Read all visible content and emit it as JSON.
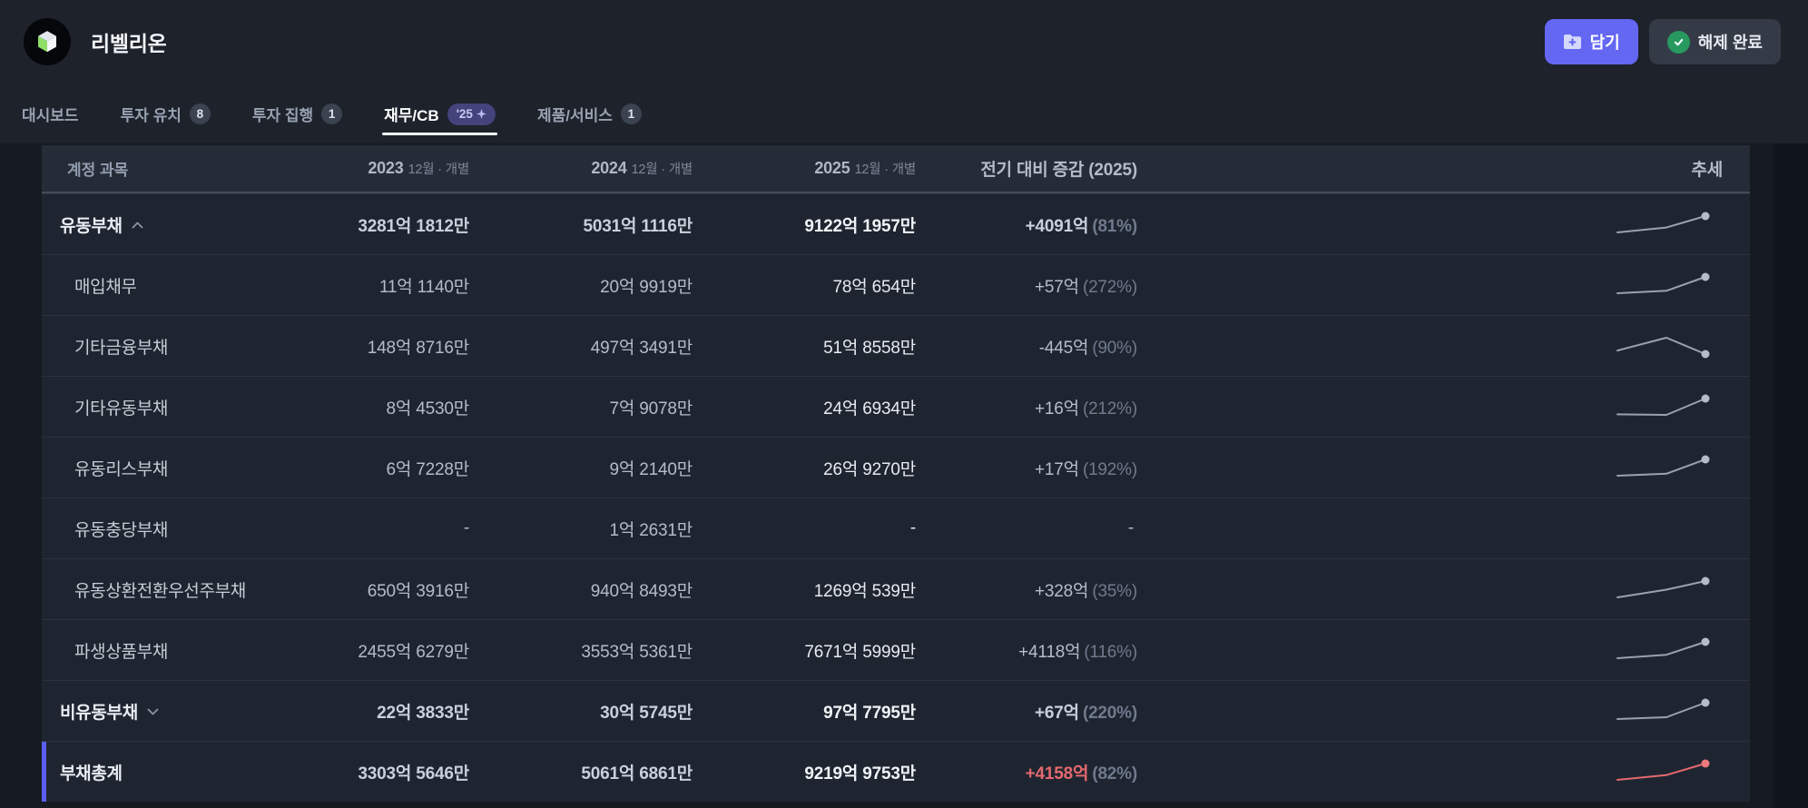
{
  "topbar": {
    "company_name": "리벨리온",
    "add_button": "담기",
    "done_button": "해제 완료"
  },
  "tabs": [
    {
      "label": "대시보드"
    },
    {
      "label": "투자 유치",
      "badge": "8"
    },
    {
      "label": "투자 집행",
      "badge": "1"
    },
    {
      "label": "재무/CB",
      "badge": "'25",
      "active": true
    },
    {
      "label": "제품/서비스",
      "badge": "1"
    }
  ],
  "table": {
    "header": {
      "account": "계정 과목",
      "y2023": "2023",
      "y2024": "2024",
      "y2025": "2025",
      "period_suffix": "12월 · 개별",
      "change": "전기 대비 증감 (2025)",
      "trend": "추세"
    },
    "rows": [
      {
        "label": "유동부채",
        "v2023": "3281억 1812만",
        "v2024": "5031억 1116만",
        "v2025": "9122억 1957만",
        "delta": "+4091억",
        "pct": "(81%)",
        "spark": [
          3281.1812,
          5031.1116,
          9122.1957
        ],
        "spark_color": "#98a2b0",
        "spark_dot": "#b3bcc9"
      },
      {
        "label": "매입채무",
        "v2023": "11억 1140만",
        "v2024": "20억 9919만",
        "v2025": "78억 654만",
        "delta": "+57억",
        "pct": "(272%)",
        "spark": [
          11.114,
          20.9919,
          78.0654
        ],
        "spark_color": "#98a2b0",
        "spark_dot": "#b3bcc9"
      },
      {
        "label": "기타금융부채",
        "v2023": "148억 8716만",
        "v2024": "497억 3491만",
        "v2025": "51억 8558만",
        "delta": "-445억",
        "pct": "(90%)",
        "spark": [
          148.8716,
          497.3491,
          51.8558
        ],
        "spark_color": "#98a2b0",
        "spark_dot": "#b3bcc9"
      },
      {
        "label": "기타유동부채",
        "v2023": "8억 4530만",
        "v2024": "7억 9078만",
        "v2025": "24억 6934만",
        "delta": "+16억",
        "pct": "(212%)",
        "spark": [
          8.453,
          7.9078,
          24.6934
        ],
        "spark_color": "#98a2b0",
        "spark_dot": "#b3bcc9"
      },
      {
        "label": "유동리스부채",
        "v2023": "6억 7228만",
        "v2024": "9억 2140만",
        "v2025": "26억 9270만",
        "delta": "+17억",
        "pct": "(192%)",
        "spark": [
          6.7228,
          9.214,
          26.927
        ],
        "spark_color": "#98a2b0",
        "spark_dot": "#b3bcc9"
      },
      {
        "label": "유동충당부채",
        "v2023": "-",
        "v2024": "1억 2631만",
        "v2025": "-",
        "delta": "-",
        "pct": "",
        "spark": null
      },
      {
        "label": "유동상환전환우선주부채",
        "v2023": "650억 3916만",
        "v2024": "940억 8493만",
        "v2025": "1269억 539만",
        "delta": "+328억",
        "pct": "(35%)",
        "spark": [
          650.3916,
          940.8493,
          1269.0539
        ],
        "spark_color": "#98a2b0",
        "spark_dot": "#b3bcc9"
      },
      {
        "label": "파생상품부채",
        "v2023": "2455억 6279만",
        "v2024": "3553억 5361만",
        "v2025": "7671억 5999만",
        "delta": "+4118억",
        "pct": "(116%)",
        "spark": [
          2455.6279,
          3553.5361,
          7671.5999
        ],
        "spark_color": "#98a2b0",
        "spark_dot": "#b3bcc9"
      },
      {
        "label": "비유동부채",
        "v2023": "22억 3833만",
        "v2024": "30억 5745만",
        "v2025": "97억 7795만",
        "delta": "+67억",
        "pct": "(220%)",
        "spark": [
          22.3833,
          30.5745,
          97.7795
        ],
        "spark_color": "#98a2b0",
        "spark_dot": "#b3bcc9"
      },
      {
        "label": "부채총계",
        "v2023": "3303억 5646만",
        "v2024": "5061억 6861만",
        "v2025": "9219억 9753만",
        "delta": "+4158억",
        "pct": "(82%)",
        "spark": [
          3303.5646,
          5061.6861,
          9219.9753
        ],
        "spark_color": "#e4696e",
        "spark_dot": "#ef7a7c"
      }
    ]
  },
  "colors": {
    "accent_purple": "#6467f2",
    "total_bar_purple": "#5a5ef0",
    "negative_red": "#e4696e",
    "success_green": "#27995f",
    "active_tab_underline": "#ffffff"
  }
}
